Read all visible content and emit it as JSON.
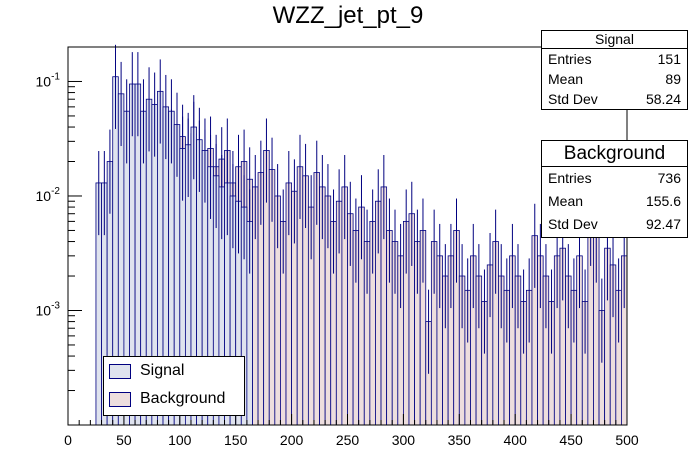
{
  "chart_data": {
    "type": "histogram",
    "title": "WZZ_jet_pt_9",
    "xlabel": "",
    "ylabel": "",
    "xlim": [
      0,
      500
    ],
    "ylog": true,
    "ylim": [
      0.0001,
      0.2
    ],
    "bin_width": 5,
    "x_ticks": [
      "0",
      "50",
      "100",
      "150",
      "200",
      "250",
      "300",
      "350",
      "400",
      "450",
      "500"
    ],
    "y_ticks": [
      {
        "value": 0.1,
        "label": "10^{-1}"
      },
      {
        "value": 0.01,
        "label": "10^{-2}"
      },
      {
        "value": 0.001,
        "label": "10^{-3}"
      }
    ],
    "legend": [
      "Signal",
      "Background"
    ],
    "series": [
      {
        "name": "Signal",
        "color": "#000080",
        "fill": "#dfe3ee",
        "bins_start": 25,
        "values": [
          0.013,
          0.013,
          0.02,
          0.11,
          0.078,
          0.055,
          0.095,
          0.095,
          0.055,
          0.07,
          0.063,
          0.082,
          0.06,
          0.055,
          0.042,
          0.026,
          0.028,
          0.04,
          0.031,
          0.025,
          0.018,
          0.015,
          0.012,
          0.013,
          0.01,
          0.009,
          0.008,
          0.006
        ]
      },
      {
        "name": "Background",
        "color": "#000080",
        "fill": "#eddede",
        "bins_start": 25,
        "values": [
          0.0001,
          0.0001,
          0.0001,
          0.012,
          0.006,
          0.007,
          0.013,
          0.016,
          0.013,
          0.03,
          0.028,
          0.036,
          0.028,
          0.03,
          0.02,
          0.033,
          0.025,
          0.035,
          0.024,
          0.02,
          0.026,
          0.018,
          0.021,
          0.025,
          0.013,
          0.018,
          0.02,
          0.014,
          0.012,
          0.016,
          0.025,
          0.017,
          0.01,
          0.006,
          0.013,
          0.011,
          0.018,
          0.015,
          0.008,
          0.016,
          0.012,
          0.01,
          0.006,
          0.009,
          0.012,
          0.007,
          0.005,
          0.008,
          0.004,
          0.006,
          0.009,
          0.012,
          0.005,
          0.004,
          0.003,
          0.006,
          0.007,
          0.004,
          0.005,
          0.0008,
          0.004,
          0.003,
          0.002,
          0.003,
          0.005,
          0.002,
          0.0015,
          0.003,
          0.002,
          0.0012,
          0.0025,
          0.004,
          0.002,
          0.0015,
          0.003,
          0.002,
          0.0012,
          0.0015,
          0.0045,
          0.003,
          0.002,
          0.0012,
          0.003,
          0.0035,
          0.002,
          0.0015,
          0.003,
          0.0012,
          0.007,
          0.005,
          0.001,
          0.0035,
          0.0025,
          0.0015,
          0.003,
          0.002
        ]
      }
    ]
  },
  "stats": {
    "signal": {
      "title": "Signal",
      "entries_label": "Entries",
      "entries": "151",
      "mean_label": "Mean",
      "mean": "89",
      "std_label": "Std Dev",
      "std": "58.24"
    },
    "background": {
      "title": "Background",
      "entries_label": "Entries",
      "entries": "736",
      "mean_label": "Mean",
      "mean": "155.6",
      "std_label": "Std Dev",
      "std": "92.47"
    }
  }
}
